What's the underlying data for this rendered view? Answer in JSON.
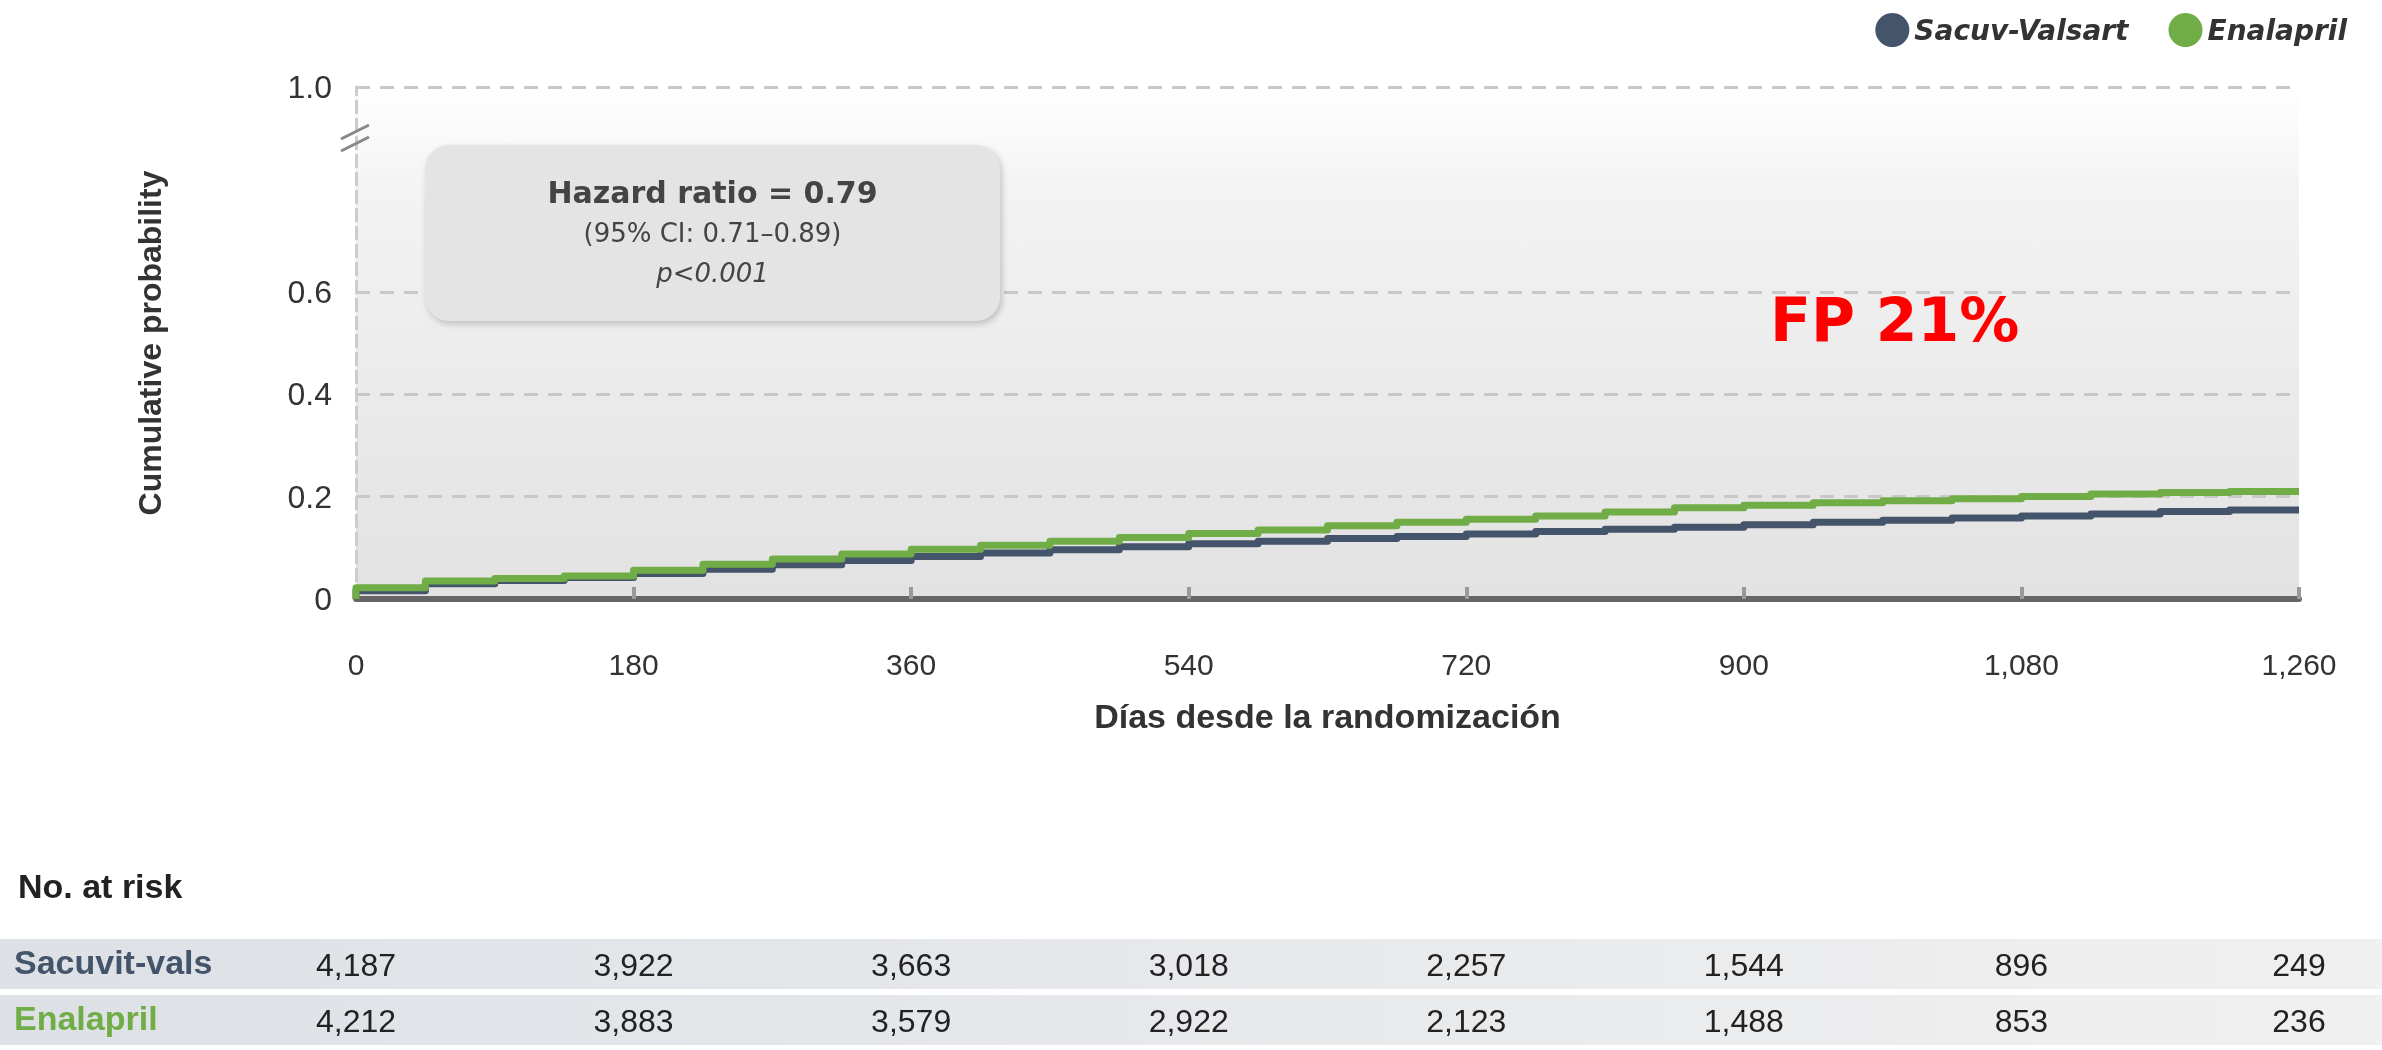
{
  "chart_data": [
    {
      "type": "step",
      "ylabel": "Cumulative probability",
      "xlabel": "Días desde la randomización",
      "x": [
        0,
        45,
        90,
        135,
        180,
        225,
        270,
        315,
        360,
        405,
        450,
        495,
        540,
        585,
        630,
        675,
        720,
        765,
        810,
        855,
        900,
        945,
        990,
        1035,
        1080,
        1125,
        1170,
        1215,
        1260
      ],
      "series": [
        {
          "name": "Sacuv-Valsart",
          "color": "#44546a",
          "values": [
            0,
            0.016,
            0.03,
            0.036,
            0.042,
            0.05,
            0.058,
            0.067,
            0.075,
            0.083,
            0.09,
            0.096,
            0.102,
            0.108,
            0.113,
            0.118,
            0.122,
            0.127,
            0.132,
            0.136,
            0.14,
            0.145,
            0.15,
            0.154,
            0.158,
            0.162,
            0.166,
            0.171,
            0.174
          ]
        },
        {
          "name": "Enalapril",
          "color": "#70ad47",
          "values": [
            0,
            0.022,
            0.035,
            0.04,
            0.045,
            0.056,
            0.068,
            0.078,
            0.088,
            0.097,
            0.105,
            0.113,
            0.12,
            0.128,
            0.135,
            0.143,
            0.15,
            0.156,
            0.162,
            0.17,
            0.178,
            0.183,
            0.188,
            0.192,
            0.196,
            0.2,
            0.205,
            0.208,
            0.21
          ]
        }
      ],
      "xlim": [
        0,
        1260
      ],
      "xticks": [
        0,
        180,
        360,
        540,
        720,
        900,
        {
          "value": 1080,
          "label": "1,080"
        },
        {
          "value": 1260,
          "label": "1,260"
        }
      ],
      "ylim": [
        0,
        1
      ],
      "yticks": [
        0,
        0.2,
        0.4,
        0.6,
        {
          "value": 1,
          "label": "1.0"
        }
      ],
      "grid": "y",
      "legend": "top right",
      "marker": "none",
      "line_style": "solid",
      "annotations": [
        "Hazard ratio = 0.79",
        "(95% CI: 0.71–0.89)",
        "p<0.001",
        "FP 21%"
      ]
    },
    {
      "type": "other",
      "title": "No. at risk",
      "annotations": [
        "Sacuvit-vals",
        "4,187",
        "3,922",
        "3,663",
        "3,018",
        "2,257",
        "1,544",
        "896",
        "249",
        "Enalapril",
        "4,212",
        "3,883",
        "3,579",
        "2,922",
        "2,123",
        "1,488",
        "853",
        "236"
      ]
    }
  ]
}
